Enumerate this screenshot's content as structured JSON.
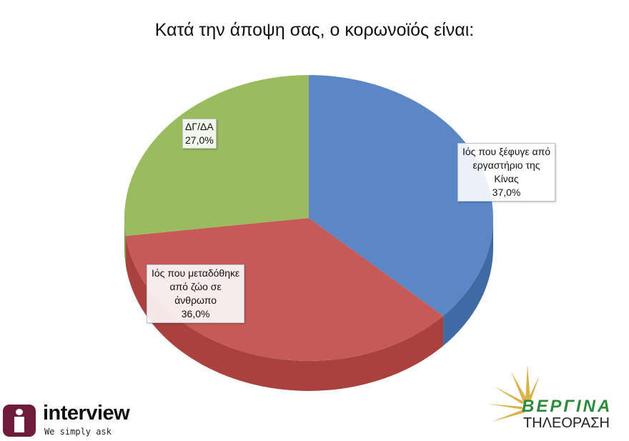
{
  "chart_data": {
    "type": "pie",
    "title": "Κατά την άποψη σας, ο κορωνοϊός είναι:",
    "slices": [
      {
        "label": [
          "Ιός που ξέφυγε από",
          "εργαστήριο της",
          "Κίνας"
        ],
        "value_label": "37,0%",
        "value": 37.0,
        "color": "#5b88c4",
        "side": "#3f6aa3"
      },
      {
        "label": [
          "Ιός που μεταδόθηκε",
          "από ζώο σε",
          "άνθρωπο"
        ],
        "value_label": "36,0%",
        "value": 36.0,
        "color": "#c55a58",
        "side": "#a9423f"
      },
      {
        "label": [
          "ΔΓ/ΔΑ"
        ],
        "value_label": "27,0%",
        "value": 27.0,
        "color": "#9bbb5f",
        "side": "#7d9c43"
      }
    ]
  },
  "logos": {
    "left": {
      "name": "interview",
      "tagline": "We simply ask"
    },
    "right": {
      "name": "ΒΕΡΓΙΝΑ",
      "sub": "ΤΗΛΕΟΡΑΣΗ"
    }
  }
}
